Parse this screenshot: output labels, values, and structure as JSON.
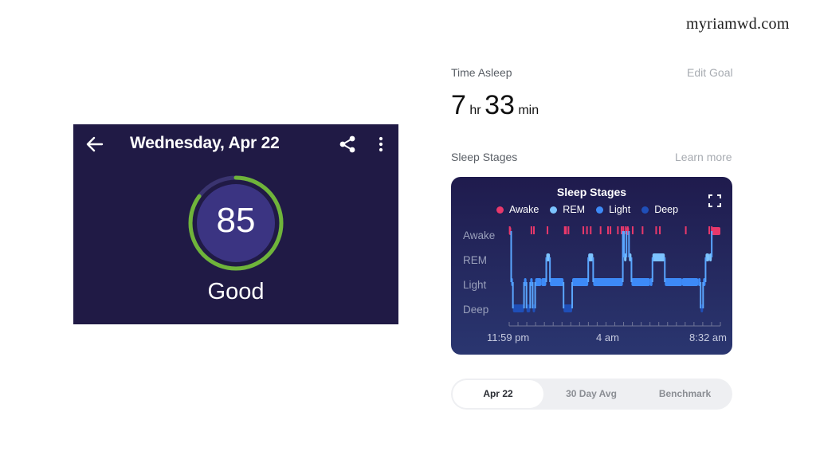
{
  "watermark": "myriamwd.com",
  "score_panel": {
    "date_title": "Wednesday, Apr 22",
    "score": "85",
    "score_fraction": 0.85,
    "label": "Good",
    "ring_color": "#6fb43a",
    "icons": [
      "back-arrow-icon",
      "share-icon",
      "more-vert-icon"
    ]
  },
  "time_asleep": {
    "title": "Time Asleep",
    "edit_goal": "Edit Goal",
    "hours": "7",
    "hours_unit": "hr",
    "minutes": "33",
    "minutes_unit": "min"
  },
  "sleep_stages": {
    "title": "Sleep Stages",
    "learn_more": "Learn more",
    "chart_title": "Sleep Stages",
    "legend": [
      {
        "label": "Awake",
        "color": "#e8386b"
      },
      {
        "label": "REM",
        "color": "#7cc3ff"
      },
      {
        "label": "Light",
        "color": "#3d8af7"
      },
      {
        "label": "Deep",
        "color": "#1f4fb8"
      }
    ],
    "stage_labels": [
      "Awake",
      "REM",
      "Light",
      "Deep"
    ],
    "x_labels": [
      "11:59 pm",
      "4 am",
      "8:32 am"
    ]
  },
  "chart_data": {
    "type": "line",
    "title": "Sleep Stages",
    "y_categories": [
      "Deep",
      "Light",
      "REM",
      "Awake"
    ],
    "x_tick_labels": [
      "11:59 pm",
      "4 am",
      "8:32 am"
    ],
    "x_unit": "hours after 11:59 pm",
    "series": [
      {
        "name": "Stage",
        "points": [
          [
            0.0,
            "Awake"
          ],
          [
            0.08,
            "Light"
          ],
          [
            0.15,
            "Deep"
          ],
          [
            0.6,
            "Light"
          ],
          [
            0.7,
            "Deep"
          ],
          [
            0.85,
            "Light"
          ],
          [
            0.95,
            "Deep"
          ],
          [
            1.05,
            "Light"
          ],
          [
            1.3,
            "Light"
          ],
          [
            1.5,
            "REM"
          ],
          [
            1.65,
            "Light"
          ],
          [
            2.2,
            "Deep"
          ],
          [
            2.55,
            "Light"
          ],
          [
            3.2,
            "REM"
          ],
          [
            3.4,
            "Light"
          ],
          [
            4.6,
            "Awake"
          ],
          [
            4.65,
            "REM"
          ],
          [
            4.75,
            "Awake"
          ],
          [
            4.85,
            "REM"
          ],
          [
            4.95,
            "Light"
          ],
          [
            5.7,
            "Light"
          ],
          [
            5.8,
            "REM"
          ],
          [
            6.3,
            "Light"
          ],
          [
            7.0,
            "Light"
          ],
          [
            7.65,
            "Light"
          ],
          [
            7.75,
            "Deep"
          ],
          [
            7.85,
            "Light"
          ],
          [
            7.95,
            "REM"
          ],
          [
            8.1,
            "REM"
          ],
          [
            8.2,
            "Awake"
          ],
          [
            8.55,
            "Awake"
          ]
        ]
      }
    ],
    "awake_ticks_hours": [
      0.02,
      0.9,
      1.0,
      1.55,
      2.25,
      2.3,
      2.4,
      3.0,
      3.15,
      3.3,
      3.7,
      4.0,
      4.1,
      4.4,
      4.55,
      4.62,
      4.72,
      4.8,
      5.0,
      5.4,
      5.95,
      6.1,
      7.15,
      8.1,
      8.2
    ]
  },
  "tabs": [
    {
      "label": "Apr 22",
      "active": true
    },
    {
      "label": "30 Day Avg",
      "active": false
    },
    {
      "label": "Benchmark",
      "active": false
    }
  ]
}
